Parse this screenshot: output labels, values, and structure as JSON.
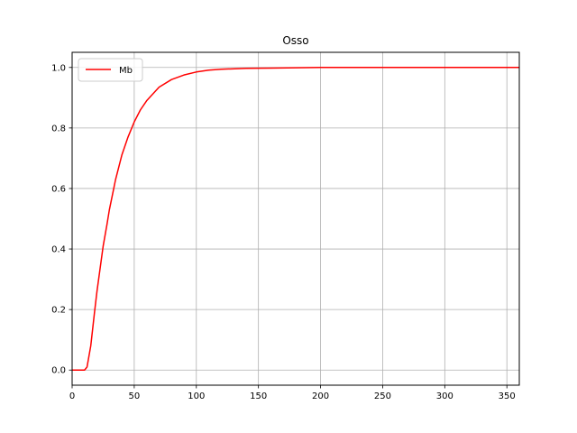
{
  "chart_data": {
    "type": "line",
    "title": "Osso",
    "xlabel": "",
    "ylabel": "",
    "xlim": [
      0,
      360
    ],
    "ylim": [
      -0.05,
      1.05
    ],
    "xticks": [
      0,
      50,
      100,
      150,
      200,
      250,
      300,
      350
    ],
    "yticks": [
      0.0,
      0.2,
      0.4,
      0.6,
      0.8,
      1.0
    ],
    "ytick_labels": [
      "0.0",
      "0.2",
      "0.4",
      "0.6",
      "0.8",
      "1.0"
    ],
    "grid": true,
    "legend_position": "upper-left",
    "series": [
      {
        "name": "Mb",
        "color": "#ff0000",
        "x": [
          0,
          5,
          10,
          12,
          15,
          18,
          20,
          22,
          25,
          28,
          30,
          35,
          40,
          45,
          50,
          55,
          60,
          70,
          80,
          90,
          100,
          110,
          120,
          140,
          160,
          180,
          200,
          250,
          300,
          360
        ],
        "y": [
          0.0,
          0.0,
          0.0,
          0.01,
          0.08,
          0.19,
          0.26,
          0.32,
          0.41,
          0.48,
          0.53,
          0.63,
          0.71,
          0.77,
          0.82,
          0.86,
          0.89,
          0.935,
          0.96,
          0.975,
          0.985,
          0.991,
          0.994,
          0.997,
          0.998,
          0.999,
          1.0,
          1.0,
          1.0,
          1.0
        ]
      }
    ]
  }
}
